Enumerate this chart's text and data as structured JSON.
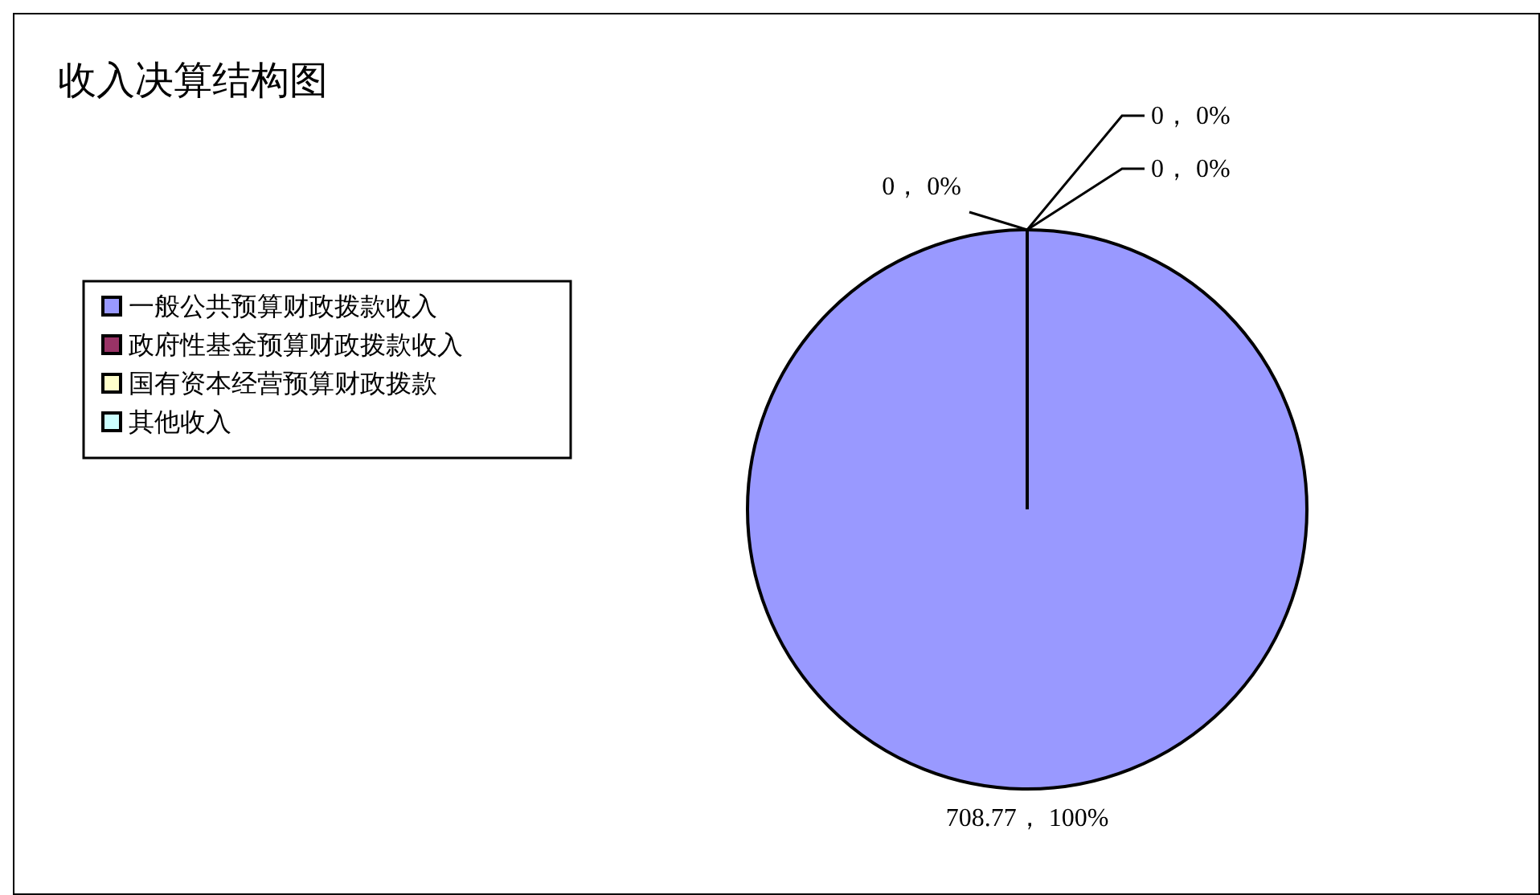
{
  "chart_data": {
    "type": "pie",
    "title": "收入决算结构图",
    "categories": [
      "一般公共预算财政拨款收入",
      "政府性基金预算财政拨款收入",
      "国有资本经营预算财政拨款",
      "其他收入"
    ],
    "values": [
      708.77,
      0,
      0,
      0
    ],
    "colors": [
      "#9999ff",
      "#993366",
      "#ffffcc",
      "#ccffff"
    ],
    "value_labels": [
      "708.77， 100%",
      "0， 0%",
      "0， 0%",
      "0， 0%"
    ],
    "legend": "left"
  }
}
